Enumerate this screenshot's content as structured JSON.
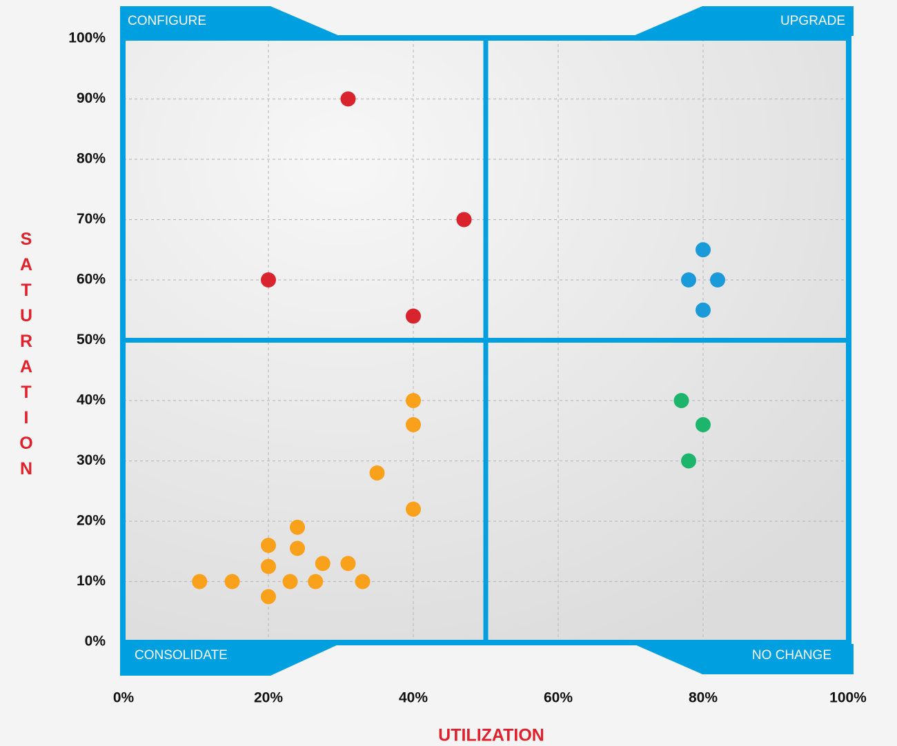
{
  "chart_data": {
    "type": "scatter",
    "x_label": "UTILIZATION",
    "y_label": "SATURATION",
    "quadrants": [
      "CONFIGURE",
      "UPGRADE",
      "CONSOLIDATE",
      "NO CHANGE"
    ],
    "divider": {
      "x": 50,
      "y": 50
    },
    "frame_color": "#009fdf",
    "xlim": [
      0,
      100
    ],
    "ylim": [
      0,
      100
    ],
    "xticks": [
      {
        "value": 0,
        "label": "0%"
      },
      {
        "value": 20,
        "label": "20%"
      },
      {
        "value": 40,
        "label": "40%"
      },
      {
        "value": 60,
        "label": "60%"
      },
      {
        "value": 80,
        "label": "80%"
      },
      {
        "value": 100,
        "label": "100%"
      }
    ],
    "yticks": [
      {
        "value": 0,
        "label": "0%"
      },
      {
        "value": 10,
        "label": "10%"
      },
      {
        "value": 20,
        "label": "20%"
      },
      {
        "value": 30,
        "label": "30%"
      },
      {
        "value": 40,
        "label": "40%"
      },
      {
        "value": 50,
        "label": "50%"
      },
      {
        "value": 60,
        "label": "60%"
      },
      {
        "value": 70,
        "label": "70%"
      },
      {
        "value": 80,
        "label": "80%"
      },
      {
        "value": 90,
        "label": "90%"
      },
      {
        "value": 100,
        "label": "100%"
      }
    ],
    "grid": true,
    "series": [
      {
        "color": "#d9232d",
        "x": [
          31,
          47,
          20,
          40
        ],
        "y": [
          90,
          70,
          60,
          54
        ]
      },
      {
        "color": "#1a9ad9",
        "x": [
          80,
          78,
          82,
          80
        ],
        "y": [
          65,
          60,
          60,
          55
        ]
      },
      {
        "color": "#1db56b",
        "x": [
          77,
          80,
          78
        ],
        "y": [
          40,
          36,
          30
        ]
      },
      {
        "color": "#f9a11b",
        "x": [
          40,
          40,
          35,
          40,
          24,
          20,
          24,
          20,
          27.5,
          31,
          10.5,
          15,
          23,
          26.5,
          33,
          20
        ],
        "y": [
          40,
          36,
          28,
          22,
          19,
          16,
          15.5,
          12.5,
          13,
          13,
          10,
          10,
          10,
          10,
          10,
          7.5
        ]
      }
    ]
  }
}
